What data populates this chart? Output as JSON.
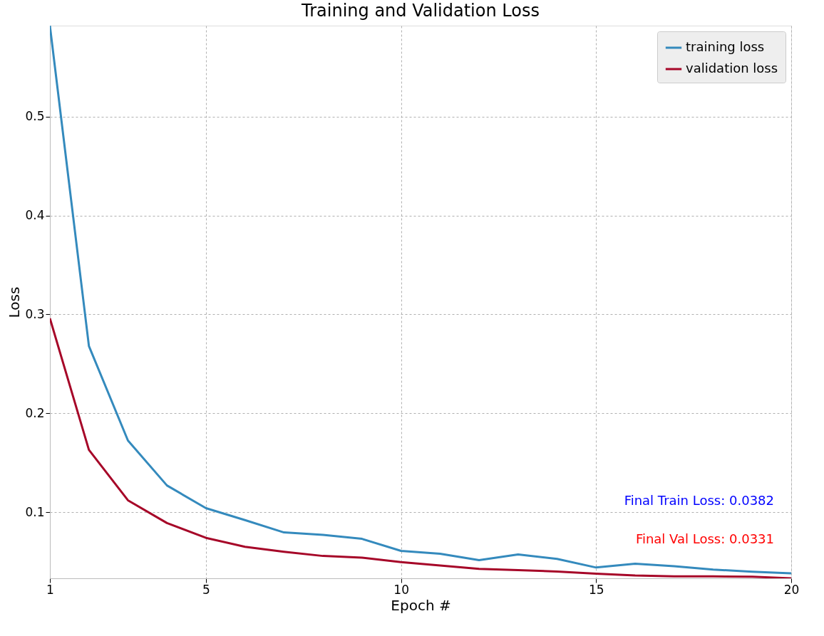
{
  "chart_data": {
    "type": "line",
    "title": "Training and Validation Loss",
    "xlabel": "Epoch #",
    "ylabel": "Loss",
    "x": [
      1,
      2,
      3,
      4,
      5,
      6,
      7,
      8,
      9,
      10,
      11,
      12,
      13,
      14,
      15,
      16,
      17,
      18,
      19,
      20
    ],
    "series": [
      {
        "name": "training loss",
        "color": "#348abd",
        "values": [
          0.592,
          0.268,
          0.1725,
          0.127,
          0.104,
          0.092,
          0.0795,
          0.077,
          0.073,
          0.0608,
          0.058,
          0.0514,
          0.0573,
          0.0527,
          0.044,
          0.0478,
          0.0454,
          0.042,
          0.0397,
          0.0382
        ]
      },
      {
        "name": "validation loss",
        "color": "#a60628",
        "values": [
          0.296,
          0.163,
          0.112,
          0.089,
          0.074,
          0.065,
          0.06,
          0.0557,
          0.054,
          0.0495,
          0.046,
          0.0427,
          0.0414,
          0.04,
          0.0378,
          0.036,
          0.0351,
          0.035,
          0.0348,
          0.0331
        ]
      }
    ],
    "xlim": [
      1,
      20
    ],
    "ylim": [
      0.0331,
      0.592
    ],
    "xticks": [
      1,
      5,
      10,
      15,
      20
    ],
    "yticks": [
      0.1,
      0.2,
      0.3,
      0.4,
      0.5
    ],
    "grid": true,
    "legend": "top right",
    "marker": "none",
    "line_style": "solid",
    "annotations": [
      "Final Train Loss: 0.0382",
      "Final Val Loss: 0.0331"
    ]
  }
}
